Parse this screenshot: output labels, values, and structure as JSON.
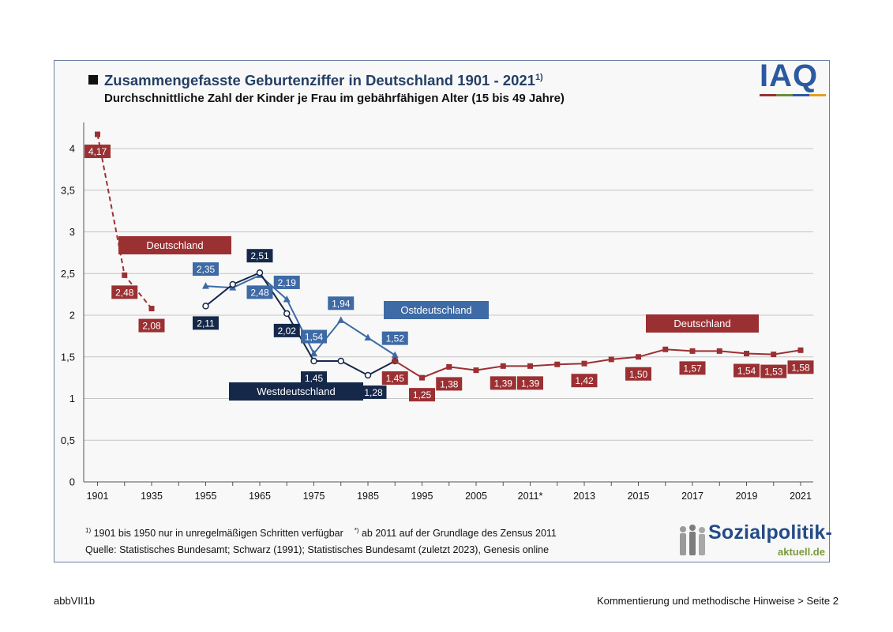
{
  "title": {
    "main": "Zusammengefasste Geburtenziffer in Deutschland 1901 - 2021",
    "main_sup": "1)",
    "subtitle": "Durchschnittliche Zahl der Kinder je Frau im gebährfähigen Alter (15 bis 49 Jahre)"
  },
  "logos": {
    "iaq": "IAQ",
    "sozialpolitik_main": "Sozialpolitik-",
    "sozialpolitik_sub": "aktuell.de"
  },
  "footnotes": {
    "note1_marker": "1)",
    "note1": "1901 bis 1950 nur in unregelmäßigen Schritten verfügbar",
    "note2_marker": "*)",
    "note2": "ab 2011 auf der Grundlage des Zensus 2011",
    "source": "Quelle: Statistisches Bundesamt; Schwarz (1991); Statistisches Bundesamt (zuletzt 2023), Genesis online"
  },
  "footer": {
    "left": "abbVII1b",
    "right": "Kommentierung und methodische Hinweise > Seite 2"
  },
  "colors": {
    "deutschland": "#9b3033",
    "west": "#15284a",
    "ost": "#3e6aa5",
    "grid": "#c4c4c4",
    "title": "#243f66"
  },
  "chart_data": {
    "type": "line",
    "y_ticks": [
      "0",
      "0,5",
      "1",
      "1,5",
      "2",
      "2,5",
      "3",
      "3,5",
      "4"
    ],
    "ylim": [
      0,
      4.3
    ],
    "x_tick_labels": [
      "1901",
      "1935",
      "1955",
      "1965",
      "1975",
      "1985",
      "1995",
      "2005",
      "2011*",
      "2013",
      "2015",
      "2017",
      "2019",
      "2021"
    ],
    "grid": true,
    "series": [
      {
        "name": "Deutschland",
        "key": "de_early",
        "style": "dashed",
        "marker": "square",
        "color_key": "deutschland",
        "points": [
          {
            "slot": 0,
            "value": 4.17,
            "label": "4,17"
          },
          {
            "slot": 1,
            "value": 2.48,
            "label": "2,48"
          },
          {
            "slot": 2,
            "value": 2.08,
            "label": "2,08"
          }
        ]
      },
      {
        "name": "Ostdeutschland",
        "key": "ost",
        "style": "solid",
        "marker": "triangle",
        "color_key": "ost",
        "points": [
          {
            "slot": 4,
            "value": 2.35,
            "label": "2,35"
          },
          {
            "slot": 5,
            "value": 2.33,
            "label": ""
          },
          {
            "slot": 6,
            "value": 2.48,
            "label": "2,48"
          },
          {
            "slot": 7,
            "value": 2.19,
            "label": "2,19"
          },
          {
            "slot": 8,
            "value": 1.54,
            "label": "1,54"
          },
          {
            "slot": 9,
            "value": 1.94,
            "label": "1,94"
          },
          {
            "slot": 10,
            "value": 1.73,
            "label": ""
          },
          {
            "slot": 11,
            "value": 1.52,
            "label": "1,52"
          }
        ]
      },
      {
        "name": "Westdeutschland",
        "key": "west",
        "style": "solid",
        "marker": "circle",
        "color_key": "west",
        "points": [
          {
            "slot": 4,
            "value": 2.11,
            "label": "2,11"
          },
          {
            "slot": 5,
            "value": 2.37,
            "label": ""
          },
          {
            "slot": 6,
            "value": 2.51,
            "label": "2,51"
          },
          {
            "slot": 7,
            "value": 2.02,
            "label": "2,02"
          },
          {
            "slot": 8,
            "value": 1.45,
            "label": "1,45"
          },
          {
            "slot": 9,
            "value": 1.45,
            "label": ""
          },
          {
            "slot": 10,
            "value": 1.28,
            "label": "1,28"
          },
          {
            "slot": 11,
            "value": 1.45,
            "label": ""
          }
        ]
      },
      {
        "name": "Deutschland",
        "key": "de_late",
        "style": "solid",
        "marker": "square",
        "color_key": "deutschland",
        "points": [
          {
            "slot": 11,
            "value": 1.45,
            "label": "1,45"
          },
          {
            "slot": 12,
            "value": 1.25,
            "label": "1,25"
          },
          {
            "slot": 13,
            "value": 1.38,
            "label": "1,38"
          },
          {
            "slot": 14,
            "value": 1.34,
            "label": ""
          },
          {
            "slot": 15,
            "value": 1.39,
            "label": "1,39"
          },
          {
            "slot": 16,
            "value": 1.39,
            "label": "1,39"
          },
          {
            "slot": 17,
            "value": 1.41,
            "label": ""
          },
          {
            "slot": 18,
            "value": 1.42,
            "label": "1,42"
          },
          {
            "slot": 19,
            "value": 1.47,
            "label": ""
          },
          {
            "slot": 20,
            "value": 1.5,
            "label": "1,50"
          },
          {
            "slot": 21,
            "value": 1.59,
            "label": ""
          },
          {
            "slot": 22,
            "value": 1.57,
            "label": "1,57"
          },
          {
            "slot": 23,
            "value": 1.57,
            "label": ""
          },
          {
            "slot": 24,
            "value": 1.54,
            "label": "1,54"
          },
          {
            "slot": 25,
            "value": 1.53,
            "label": "1,53"
          },
          {
            "slot": 26,
            "value": 1.58,
            "label": "1,58"
          }
        ]
      }
    ],
    "series_labels": [
      {
        "text": "Deutschland",
        "color_key": "deutschland"
      },
      {
        "text": "Ostdeutschland",
        "color_key": "ost"
      },
      {
        "text": "Westdeutschland",
        "color_key": "west"
      },
      {
        "text": "Deutschland",
        "color_key": "deutschland"
      }
    ]
  }
}
